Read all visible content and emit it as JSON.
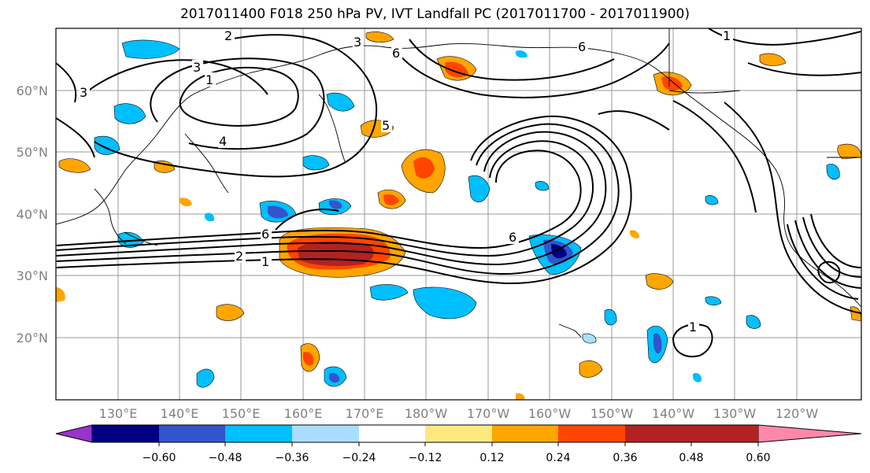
{
  "title": "2017011400 F018 250 hPa PV, IVT Landfall PC (2017011700 - 2017011900)",
  "lat_labels": [
    "60°N",
    "50°N",
    "40°N",
    "30°N",
    "20°N"
  ],
  "lon_labels": [
    "130°E",
    "140°E",
    "150°E",
    "160°E",
    "170°E",
    "180°W",
    "170°W",
    "160°W",
    "150°W",
    "140°W",
    "130°W",
    "120°W"
  ],
  "colorbar": {
    "colors": [
      "#9933cc",
      "#000080",
      "#3355cc",
      "#00bfff",
      "#aaddff",
      "#ffffff",
      "#ffe880",
      "#ffa500",
      "#ff4500",
      "#b22222",
      "#ff88aa"
    ],
    "tick_labels": [
      "−0.60",
      "−0.48",
      "−0.36",
      "−0.24",
      "−0.12",
      "0.12",
      "0.24",
      "0.36",
      "0.48",
      "0.60"
    ]
  },
  "contour_labels": [
    "6",
    "2",
    "1",
    "4",
    "3",
    "1",
    "2",
    "3",
    "6",
    "6",
    "1",
    "5",
    "6",
    "1",
    "3"
  ]
}
